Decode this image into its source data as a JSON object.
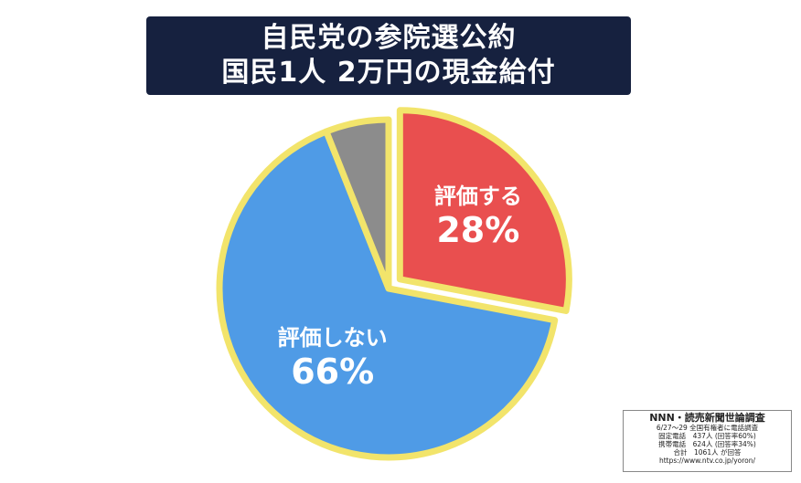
{
  "title": {
    "line1": "自民党の参院選公約",
    "line2": "国民1人 2万円の現金給付"
  },
  "colors": {
    "title_bg": "#16213f",
    "outline": "#f2e46b",
    "red": "#e94f4f",
    "blue": "#4f9be6",
    "gray": "#8c8c8c"
  },
  "chart_data": {
    "type": "pie",
    "slices": [
      {
        "label": "評価する",
        "value_label": "28%",
        "value": 28,
        "color": "#e94f4f",
        "exploded": true
      },
      {
        "label": "評価しない",
        "value_label": "66%",
        "value": 66,
        "color": "#4f9be6",
        "exploded": false
      },
      {
        "label": "",
        "value_label": "",
        "value": 6,
        "color": "#8c8c8c",
        "exploded": false
      }
    ],
    "legend": "none",
    "start": "12 o'clock, clockwise"
  },
  "source": {
    "title": "NNN・読売新聞世論調査",
    "lines": [
      "6/27〜29 全国有権者に電話調査",
      "固定電話　437人 (回答率60%)",
      "携帯電話　624人 (回答率34%)",
      "合計　1061人 が回答",
      "https://www.ntv.co.jp/yoron/"
    ]
  }
}
